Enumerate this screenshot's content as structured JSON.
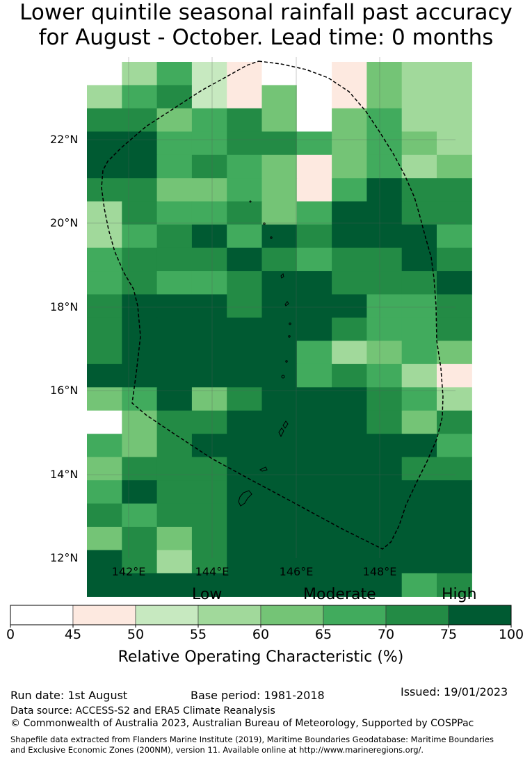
{
  "title": {
    "line1": "Lower quintile seasonal rainfall past accuracy",
    "line2": "for August - October. Lead time: 0 months"
  },
  "map": {
    "lat_labels": [
      "22°N",
      "20°N",
      "18°N",
      "16°N",
      "14°N",
      "12°N"
    ],
    "lon_labels": [
      "142°E",
      "144°E",
      "146°E",
      "148°E"
    ],
    "grid": [
      [
        0,
        3,
        5,
        2,
        1,
        0,
        0,
        1,
        4,
        3,
        3
      ],
      [
        3,
        5,
        6,
        2,
        1,
        4,
        0,
        1,
        4,
        3,
        3
      ],
      [
        6,
        6,
        4,
        5,
        6,
        4,
        0,
        4,
        5,
        3,
        3
      ],
      [
        7,
        7,
        5,
        5,
        6,
        6,
        5,
        4,
        5,
        4,
        3
      ],
      [
        7,
        7,
        5,
        6,
        5,
        4,
        1,
        4,
        5,
        3,
        4
      ],
      [
        6,
        6,
        4,
        4,
        5,
        4,
        1,
        5,
        7,
        6,
        6
      ],
      [
        3,
        6,
        5,
        5,
        6,
        4,
        5,
        7,
        7,
        6,
        6
      ],
      [
        3,
        5,
        6,
        7,
        5,
        7,
        6,
        7,
        7,
        7,
        5
      ],
      [
        5,
        6,
        6,
        6,
        7,
        6,
        5,
        6,
        6,
        7,
        6
      ],
      [
        5,
        6,
        5,
        5,
        6,
        7,
        7,
        6,
        6,
        6,
        7
      ],
      [
        6,
        7,
        7,
        7,
        6,
        7,
        7,
        7,
        5,
        5,
        6
      ],
      [
        6,
        7,
        7,
        7,
        7,
        7,
        7,
        6,
        5,
        5,
        6
      ],
      [
        6,
        7,
        7,
        7,
        7,
        7,
        5,
        3,
        4,
        5,
        4
      ],
      [
        7,
        7,
        7,
        7,
        7,
        7,
        5,
        6,
        5,
        3,
        1
      ],
      [
        4,
        5,
        7,
        4,
        6,
        7,
        7,
        7,
        6,
        5,
        3
      ],
      [
        0,
        4,
        6,
        6,
        7,
        7,
        7,
        7,
        6,
        4,
        6
      ],
      [
        5,
        4,
        6,
        7,
        7,
        7,
        7,
        7,
        7,
        7,
        5
      ],
      [
        4,
        6,
        6,
        6,
        7,
        7,
        7,
        7,
        7,
        6,
        6
      ],
      [
        5,
        7,
        6,
        6,
        7,
        7,
        7,
        7,
        7,
        7,
        7
      ],
      [
        6,
        5,
        6,
        6,
        7,
        7,
        7,
        7,
        7,
        7,
        7
      ],
      [
        4,
        6,
        4,
        6,
        7,
        7,
        7,
        7,
        7,
        7,
        7
      ],
      [
        7,
        6,
        3,
        6,
        7,
        7,
        7,
        7,
        7,
        7,
        7
      ],
      [
        7,
        7,
        7,
        7,
        7,
        7,
        7,
        7,
        7,
        5,
        6
      ]
    ]
  },
  "colorbar": {
    "ticks": [
      "0",
      "45",
      "50",
      "55",
      "60",
      "65",
      "70",
      "75",
      "100"
    ],
    "colors": [
      "#ffffff",
      "#fde9e0",
      "#c7e9c0",
      "#a1d99b",
      "#74c476",
      "#41ab5d",
      "#238b45",
      "#005a32"
    ],
    "categories": [
      "Low",
      "Moderate",
      "High"
    ],
    "title": "Relative Operating Characteristic (%)"
  },
  "footer": {
    "run_date": "Run date: 1st August",
    "base_period": "Base period: 1981-2018",
    "issued": "Issued: 19/01/2023",
    "data_source": "Data source: ACCESS-S2 and ERA5 Climate Reanalysis",
    "copyright": "© Commonwealth of Australia 2023, Australian Bureau of Meteorology, Supported by COSPPac",
    "shapefile_line1": "Shapefile data extracted from Flanders Marine Institute (2019), Maritime Boundaries Geodatabase: Maritime Boundaries",
    "shapefile_line2": "and Exclusive Economic Zones (200NM), version 11. Available online at http://www.marineregions.org/."
  }
}
